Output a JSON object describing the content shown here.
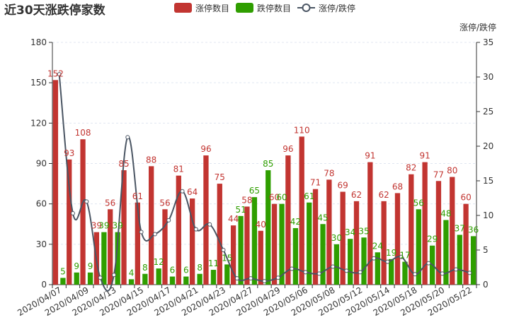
{
  "chart_data": {
    "type": "bar",
    "title": "近30天涨跌停家数",
    "categories": [
      "2020/04/07",
      "2020/04/08",
      "2020/04/09",
      "2020/04/10",
      "2020/04/13",
      "2020/04/14",
      "2020/04/15",
      "2020/04/16",
      "2020/04/17",
      "2020/04/20",
      "2020/04/21",
      "2020/04/22",
      "2020/04/23",
      "2020/04/24",
      "2020/04/27",
      "2020/04/28",
      "2020/04/29",
      "2020/04/30",
      "2020/05/06",
      "2020/05/07",
      "2020/05/08",
      "2020/05/11",
      "2020/05/12",
      "2020/05/13",
      "2020/05/14",
      "2020/05/15",
      "2020/05/18",
      "2020/05/19",
      "2020/05/20",
      "2020/05/21",
      "2020/05/22"
    ],
    "x_tick_labels": [
      "2020/04/07",
      "2020/04/09",
      "2020/04/13",
      "2020/04/15",
      "2020/04/17",
      "2020/04/21",
      "2020/04/23",
      "2020/04/27",
      "2020/04/29",
      "2020/05/06",
      "2020/05/08",
      "2020/05/12",
      "2020/05/14",
      "2020/05/18",
      "2020/05/20",
      "2020/05/22"
    ],
    "series": [
      {
        "name": "涨停数目",
        "type": "bar",
        "color": "#c23531",
        "values": [
          152,
          93,
          108,
          39,
          56,
          85,
          61,
          88,
          56,
          81,
          64,
          96,
          75,
          44,
          58,
          40,
          60,
          96,
          110,
          71,
          78,
          69,
          62,
          91,
          62,
          68,
          82,
          91,
          77,
          80,
          60
        ]
      },
      {
        "name": "跌停数目",
        "type": "bar",
        "color": "#2f9e00",
        "values": [
          5,
          9,
          9,
          39,
          39,
          4,
          8,
          12,
          6,
          6,
          8,
          11,
          15,
          51,
          65,
          85,
          60,
          42,
          61,
          45,
          30,
          34,
          35,
          24,
          19,
          17,
          56,
          29,
          48,
          37,
          36
        ]
      },
      {
        "name": "涨停/跌停",
        "type": "line",
        "color": "#4a5563",
        "axis": "right",
        "values": [
          30.4,
          10.3,
          12.0,
          1.0,
          1.4,
          21.3,
          7.6,
          7.3,
          9.3,
          13.5,
          8.0,
          8.7,
          5.0,
          0.9,
          0.9,
          0.5,
          1.0,
          2.3,
          1.8,
          1.6,
          2.6,
          2.0,
          1.8,
          3.8,
          3.3,
          4.0,
          1.5,
          3.1,
          1.6,
          2.2,
          1.7
        ]
      }
    ],
    "y_left": {
      "min": 0,
      "max": 180,
      "ticks": [
        0,
        30,
        60,
        90,
        120,
        150,
        180
      ]
    },
    "y_right": {
      "name": "涨停/跌停",
      "min": 0,
      "max": 35,
      "ticks": [
        0,
        5,
        10,
        15,
        20,
        25,
        30,
        35
      ]
    },
    "legend_position": "top",
    "grid": "horizontal-dashed"
  }
}
